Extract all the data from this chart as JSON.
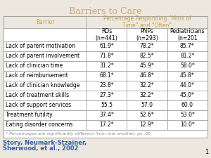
{
  "title": "Barriers to Care",
  "title_color": "#C8A878",
  "title_fontsize": 9,
  "header1": "Barrier",
  "header2": "Percentage Responding “Most of\nTime” and “Often”",
  "col_headers": [
    "RDs\n(n=441)",
    "PNPs\n(n=293)",
    "Pediatricians\n(n=201"
  ],
  "barriers": [
    "Lack of parent motivation",
    "Lack of parent involvement",
    "Lack of clinician time",
    "Lack of reimbursement",
    "Lack of clinician knowledge",
    "Lack of treatment skills",
    "Lack of support services",
    "Treatment futility",
    "Eating disorder concerns"
  ],
  "data": [
    [
      "61.9*",
      "78.2*",
      "85.7*"
    ],
    [
      "71.8*",
      "82.5*",
      "81.2*"
    ],
    [
      "31.2*",
      "45.9*",
      "58.0*"
    ],
    [
      "68.1*",
      "46.8*",
      "45.8*"
    ],
    [
      "23.8*",
      "32.2*",
      "44.0*"
    ],
    [
      "27.3*",
      "32.2*",
      "45.0*"
    ],
    [
      "55.5",
      "57.0",
      "60.0"
    ],
    [
      "37.4*",
      "52.6*",
      "53.0*"
    ],
    [
      "17.2*",
      "12.9*",
      "10.0*"
    ]
  ],
  "footnote": "* Percentages are significantly different from one another; ps .05",
  "citation_line1": "Story, Neumark-Stzainer,",
  "citation_line2": "Sherwood, et al., 2002",
  "citation_color": "#3060A0",
  "page_num": "1",
  "bg_color": "#EDE8DF",
  "header_text_color": "#C8A050",
  "table_bg": "#FFFFFF",
  "border_color": "#999999",
  "footnote_color": "#888888",
  "footnote_fontsize": 4.5,
  "barrier_fontsize": 5.5,
  "data_fontsize": 5.5,
  "col_header_fontsize": 5.5,
  "header1_fontsize": 5.5,
  "header2_fontsize": 5.5
}
